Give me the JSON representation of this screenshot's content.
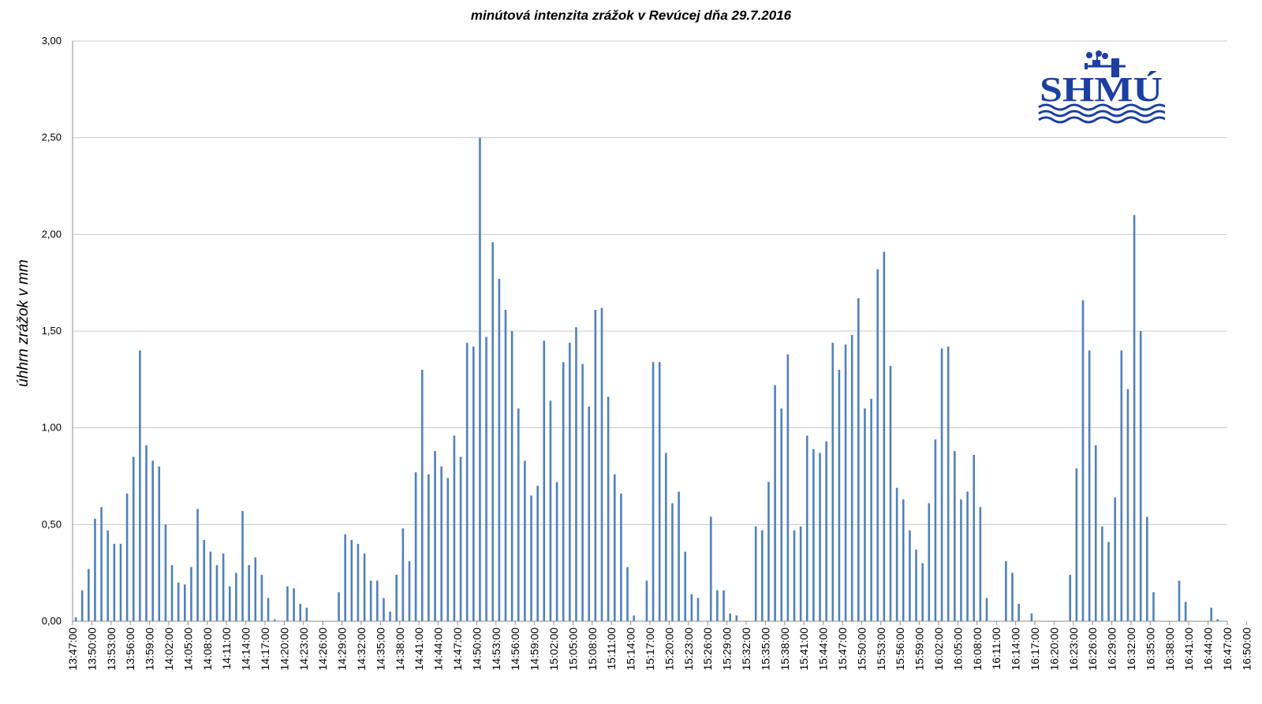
{
  "chart_data": {
    "type": "bar",
    "title": "minútová intenzita zrážok v Revúcej dňa 29.7.2016",
    "ylabel": "úhhrn zrážok v mm",
    "xlabel": "",
    "ylim": [
      0,
      3
    ],
    "yticks": [
      "0,00",
      "0,50",
      "1,00",
      "1,50",
      "2,00",
      "2,50",
      "3,00"
    ],
    "grid": true,
    "bar_color": "#4f81bd",
    "x_start": "13:47:00",
    "x_end": "16:50:00",
    "xtick_step_minutes": 3,
    "xticks": [
      "13:47:00",
      "13:50:00",
      "13:53:00",
      "13:56:00",
      "13:59:00",
      "14:02:00",
      "14:05:00",
      "14:08:00",
      "14:11:00",
      "14:14:00",
      "14:17:00",
      "14:20:00",
      "14:23:00",
      "14:26:00",
      "14:29:00",
      "14:32:00",
      "14:35:00",
      "14:38:00",
      "14:41:00",
      "14:44:00",
      "14:47:00",
      "14:50:00",
      "14:53:00",
      "14:56:00",
      "14:59:00",
      "15:02:00",
      "15:05:00",
      "15:08:00",
      "15:11:00",
      "15:14:00",
      "15:17:00",
      "15:20:00",
      "15:23:00",
      "15:26:00",
      "15:29:00",
      "15:32:00",
      "15:35:00",
      "15:38:00",
      "15:41:00",
      "15:44:00",
      "15:47:00",
      "15:50:00",
      "15:53:00",
      "15:56:00",
      "15:59:00",
      "16:02:00",
      "16:05:00",
      "16:08:00",
      "16:11:00",
      "16:14:00",
      "16:17:00",
      "16:20:00",
      "16:23:00",
      "16:26:00",
      "16:29:00",
      "16:32:00",
      "16:35:00",
      "16:38:00",
      "16:41:00",
      "16:44:00",
      "16:47:00",
      "16:50:00"
    ],
    "values": [
      0.02,
      0.16,
      0.27,
      0.53,
      0.59,
      0.47,
      0.4,
      0.4,
      0.66,
      0.85,
      1.4,
      0.91,
      0.83,
      0.8,
      0.5,
      0.29,
      0.2,
      0.19,
      0.28,
      0.58,
      0.42,
      0.36,
      0.29,
      0.35,
      0.18,
      0.25,
      0.57,
      0.29,
      0.33,
      0.24,
      0.12,
      0.01,
      0,
      0.18,
      0.17,
      0.09,
      0.07,
      0,
      0,
      0,
      0,
      0.15,
      0.45,
      0.42,
      0.4,
      0.35,
      0.21,
      0.21,
      0.12,
      0.05,
      0.24,
      0.48,
      0.31,
      0.77,
      1.3,
      0.76,
      0.88,
      0.8,
      0.74,
      0.96,
      0.85,
      1.44,
      1.42,
      2.5,
      1.47,
      1.96,
      1.77,
      1.61,
      1.5,
      1.1,
      0.83,
      0.65,
      0.7,
      1.45,
      1.14,
      0.72,
      1.34,
      1.44,
      1.52,
      1.33,
      1.11,
      1.61,
      1.62,
      1.16,
      0.76,
      0.66,
      0.28,
      0.03,
      0,
      0.21,
      1.34,
      1.34,
      0.87,
      0.61,
      0.67,
      0.36,
      0.14,
      0.12,
      0,
      0.54,
      0.16,
      0.16,
      0.04,
      0.03,
      0,
      0,
      0.49,
      0.47,
      0.72,
      1.22,
      1.1,
      1.38,
      0.47,
      0.49,
      0.96,
      0.89,
      0.87,
      0.93,
      1.44,
      1.3,
      1.43,
      1.48,
      1.67,
      1.1,
      1.15,
      1.82,
      1.91,
      1.32,
      0.69,
      0.63,
      0.47,
      0.37,
      0.3,
      0.61,
      0.94,
      1.41,
      1.42,
      0.88,
      0.63,
      0.67,
      0.86,
      0.59,
      0.12,
      0,
      0,
      0.31,
      0.25,
      0.09,
      0,
      0.04,
      0,
      0,
      0,
      0,
      0,
      0.24,
      0.79,
      1.66,
      1.4,
      0.91,
      0.49,
      0.41,
      0.64,
      1.4,
      1.2,
      2.1,
      1.5,
      0.54,
      0.15,
      0,
      0,
      0,
      0.21,
      0.1,
      0,
      0,
      0,
      0.07,
      0.01,
      0
    ]
  },
  "logo": {
    "text": "SHMÚ",
    "color": "#1c3fa0",
    "icon": "weather-station-icon"
  }
}
